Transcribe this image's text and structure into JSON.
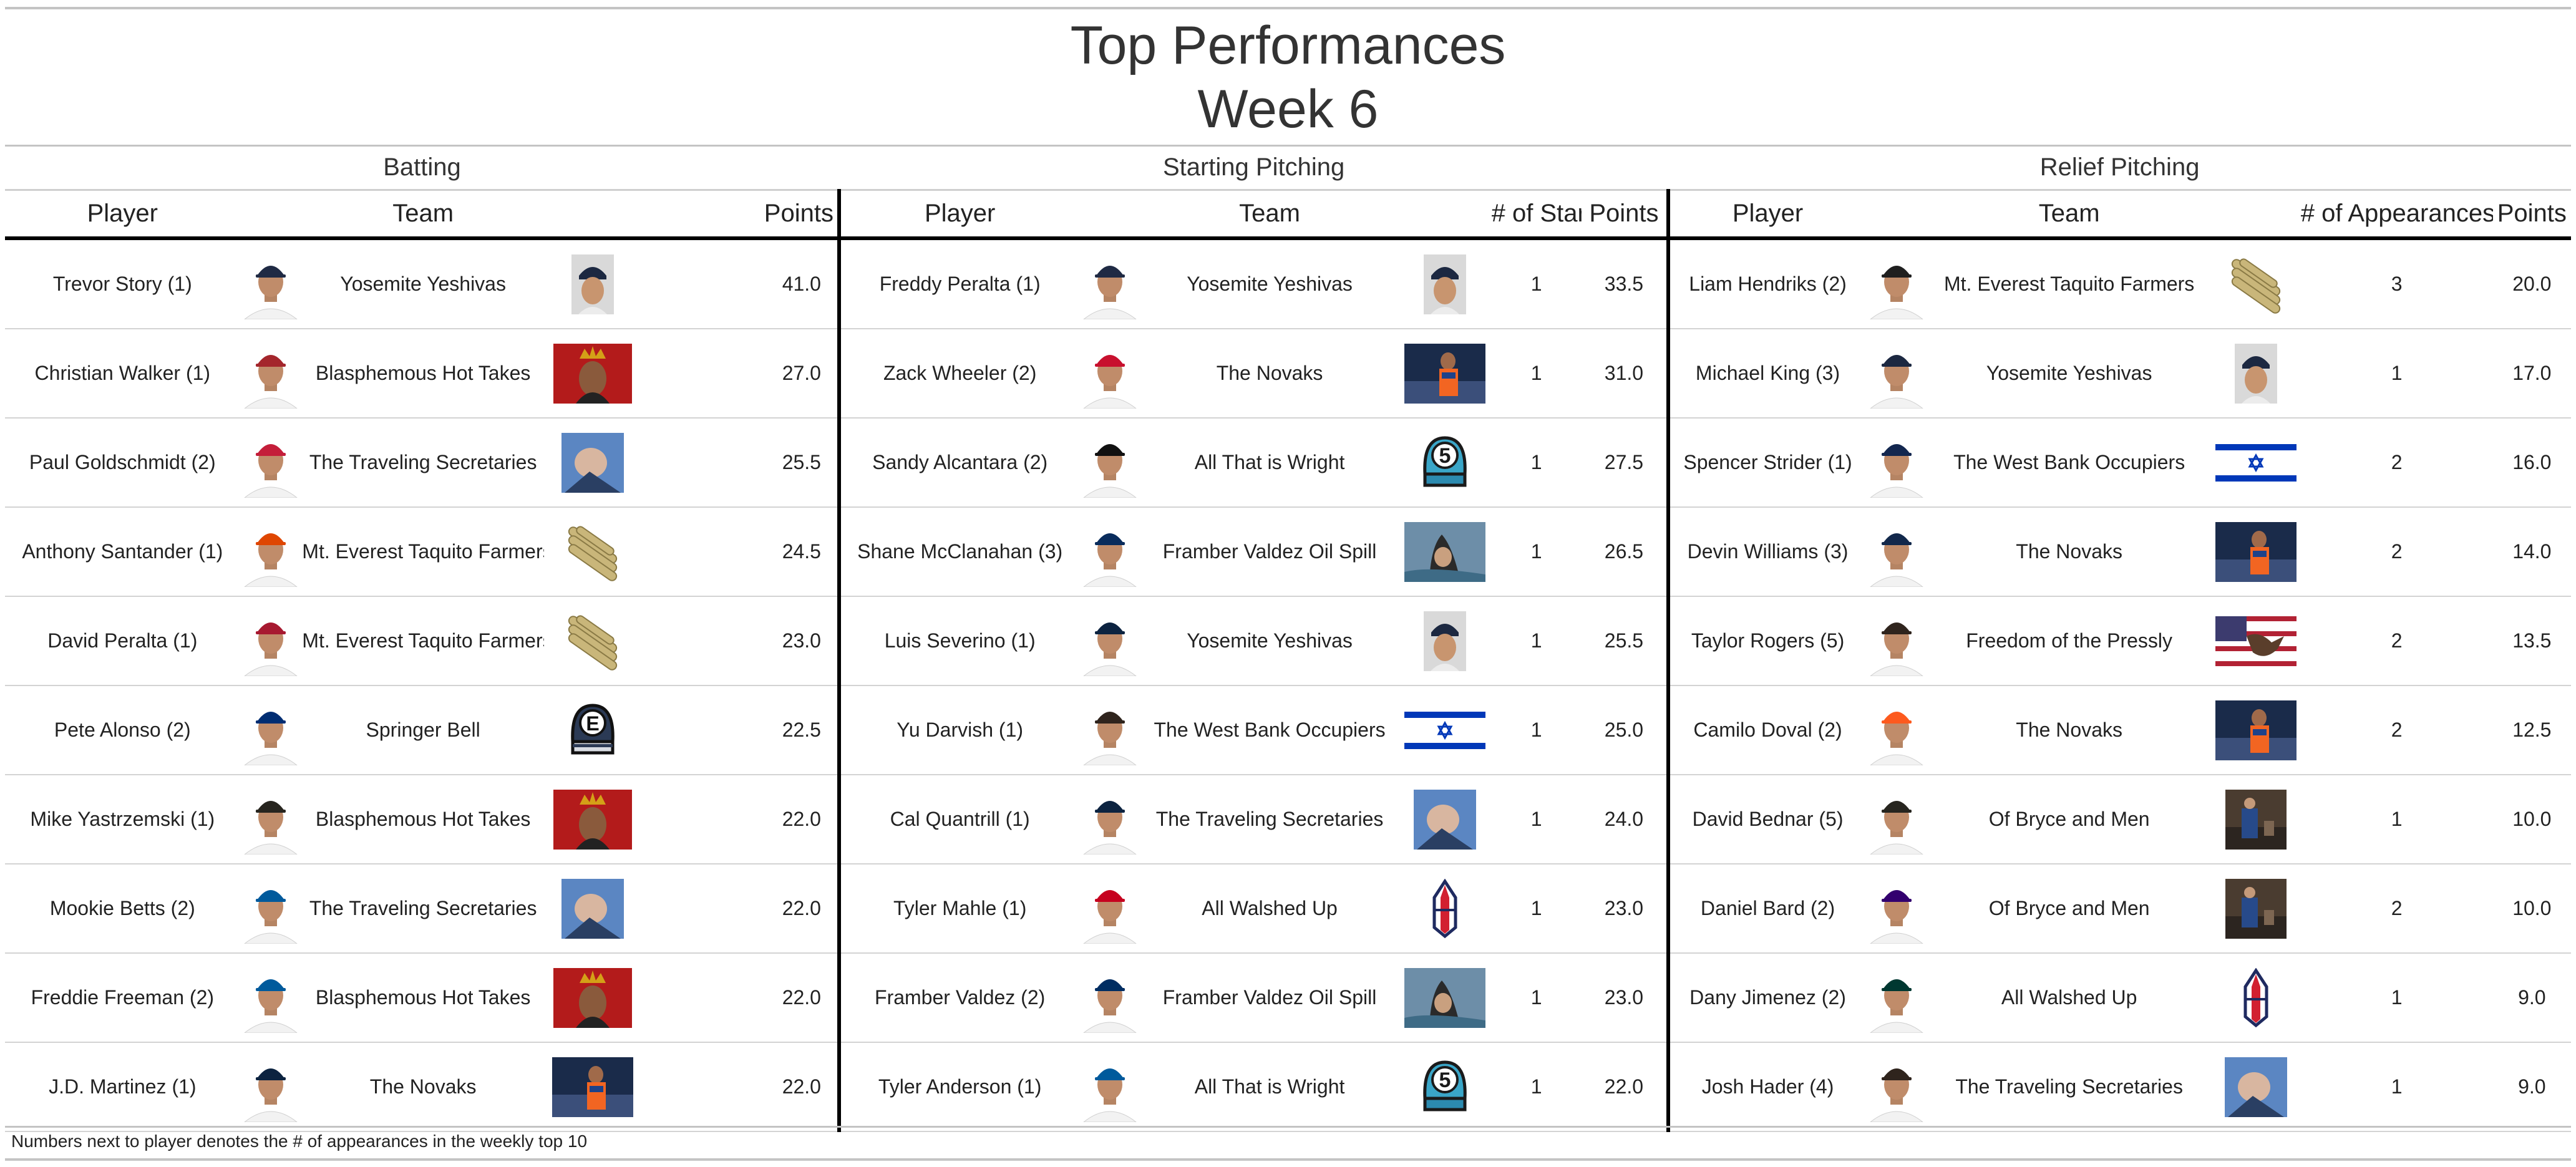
{
  "header": {
    "title": "Top Performances",
    "subtitle": "Week 6"
  },
  "sections": {
    "batting": "Batting",
    "starting": "Starting Pitching",
    "relief": "Relief Pitching"
  },
  "columns": {
    "player": "Player",
    "team": "Team",
    "points": "Points",
    "starts": "# of Starts",
    "appearances": "# of Appearances"
  },
  "rows": [
    {
      "bat": {
        "player": "Trevor Story (1)",
        "team": "Yosemite Yeshivas",
        "points": "41.0",
        "logo": "yosemite-yeshivas-logo",
        "cap": "#1f2a44"
      },
      "sp": {
        "player": "Freddy Peralta (1)",
        "team": "Yosemite Yeshivas",
        "starts": "1",
        "points": "33.5",
        "logo": "yosemite-yeshivas-logo",
        "cap": "#1f2a44"
      },
      "rp": {
        "player": "Liam Hendriks (2)",
        "team": "Mt. Everest Taquito Farmers",
        "apps": "3",
        "points": "20.0",
        "logo": "taquito-farmers-logo",
        "cap": "#1f1f1f"
      }
    },
    {
      "bat": {
        "player": "Christian Walker (1)",
        "team": "Blasphemous Hot Takes",
        "points": "27.0",
        "logo": "hot-takes-logo",
        "cap": "#a4262c"
      },
      "sp": {
        "player": "Zack Wheeler (2)",
        "team": "The Novaks",
        "starts": "1",
        "points": "31.0",
        "logo": "novaks-logo",
        "cap": "#c8102e"
      },
      "rp": {
        "player": "Michael King (3)",
        "team": "Yosemite Yeshivas",
        "apps": "1",
        "points": "17.0",
        "logo": "yosemite-yeshivas-logo",
        "cap": "#1c2841"
      }
    },
    {
      "bat": {
        "player": "Paul Goldschmidt (2)",
        "team": "The Traveling Secretaries",
        "points": "25.5",
        "logo": "traveling-secretaries-logo",
        "cap": "#c41e3a"
      },
      "sp": {
        "player": "Sandy Alcantara (2)",
        "team": "All That is Wright",
        "starts": "1",
        "points": "27.5",
        "logo": "all-that-is-wright-logo",
        "cap": "#111111"
      },
      "rp": {
        "player": "Spencer Strider (1)",
        "team": "The West Bank Occupiers",
        "apps": "2",
        "points": "16.0",
        "logo": "west-bank-occupiers-logo",
        "cap": "#13274f"
      }
    },
    {
      "bat": {
        "player": "Anthony Santander (1)",
        "team": "Mt. Everest Taquito Farmers",
        "points": "24.5",
        "logo": "taquito-farmers-logo",
        "cap": "#df4601"
      },
      "sp": {
        "player": "Shane McClanahan (3)",
        "team": "Framber Valdez Oil Spill",
        "starts": "1",
        "points": "26.5",
        "logo": "oil-spill-logo",
        "cap": "#092c5c"
      },
      "rp": {
        "player": "Devin Williams (3)",
        "team": "The Novaks",
        "apps": "2",
        "points": "14.0",
        "logo": "novaks-logo",
        "cap": "#12284b"
      }
    },
    {
      "bat": {
        "player": "David Peralta (1)",
        "team": "Mt. Everest Taquito Farmers",
        "points": "23.0",
        "logo": "taquito-farmers-logo",
        "cap": "#a71930"
      },
      "sp": {
        "player": "Luis Severino (1)",
        "team": "Yosemite Yeshivas",
        "starts": "1",
        "points": "25.5",
        "logo": "yosemite-yeshivas-logo",
        "cap": "#0c2340"
      },
      "rp": {
        "player": "Taylor Rogers (5)",
        "team": "Freedom of the Pressly",
        "apps": "2",
        "points": "13.5",
        "logo": "freedom-pressly-logo",
        "cap": "#2f241d"
      }
    },
    {
      "bat": {
        "player": "Pete Alonso (2)",
        "team": "Springer Bell",
        "points": "22.5",
        "logo": "springer-bell-logo",
        "cap": "#002d72"
      },
      "sp": {
        "player": "Yu Darvish (1)",
        "team": "The West Bank Occupiers",
        "starts": "1",
        "points": "25.0",
        "logo": "west-bank-occupiers-logo",
        "cap": "#2f241d"
      },
      "rp": {
        "player": "Camilo Doval (2)",
        "team": "The Novaks",
        "apps": "2",
        "points": "12.5",
        "logo": "novaks-logo",
        "cap": "#fd5a1e"
      }
    },
    {
      "bat": {
        "player": "Mike Yastrzemski (1)",
        "team": "Blasphemous Hot Takes",
        "points": "22.0",
        "logo": "hot-takes-logo",
        "cap": "#27251f"
      },
      "sp": {
        "player": "Cal Quantrill (1)",
        "team": "The Traveling Secretaries",
        "starts": "1",
        "points": "24.0",
        "logo": "traveling-secretaries-logo",
        "cap": "#0c2340"
      },
      "rp": {
        "player": "David Bednar (5)",
        "team": "Of Bryce and Men",
        "apps": "1",
        "points": "10.0",
        "logo": "bryce-and-men-logo",
        "cap": "#27251f"
      }
    },
    {
      "bat": {
        "player": "Mookie Betts (2)",
        "team": "The Traveling Secretaries",
        "points": "22.0",
        "logo": "traveling-secretaries-logo",
        "cap": "#005a9c"
      },
      "sp": {
        "player": "Tyler Mahle (1)",
        "team": "All Walshed Up",
        "starts": "1",
        "points": "23.0",
        "logo": "all-walshed-up-logo",
        "cap": "#c6011f"
      },
      "rp": {
        "player": "Daniel Bard (2)",
        "team": "Of Bryce and Men",
        "apps": "2",
        "points": "10.0",
        "logo": "bryce-and-men-logo",
        "cap": "#33006f"
      }
    },
    {
      "bat": {
        "player": "Freddie Freeman (2)",
        "team": "Blasphemous Hot Takes",
        "points": "22.0",
        "logo": "hot-takes-logo",
        "cap": "#005a9c"
      },
      "sp": {
        "player": "Framber Valdez (2)",
        "team": "Framber Valdez Oil Spill",
        "starts": "1",
        "points": "23.0",
        "logo": "oil-spill-logo",
        "cap": "#002d62"
      },
      "rp": {
        "player": "Dany Jimenez (2)",
        "team": "All Walshed Up",
        "apps": "1",
        "points": "9.0",
        "logo": "all-walshed-up-logo",
        "cap": "#003831"
      }
    },
    {
      "bat": {
        "player": "J.D. Martinez (1)",
        "team": "The Novaks",
        "points": "22.0",
        "logo": "novaks-logo",
        "cap": "#0c2340"
      },
      "sp": {
        "player": "Tyler Anderson (1)",
        "team": "All That is Wright",
        "starts": "1",
        "points": "22.0",
        "logo": "all-that-is-wright-logo",
        "cap": "#005a9c"
      },
      "rp": {
        "player": "Josh Hader (4)",
        "team": "The Traveling Secretaries",
        "apps": "1",
        "points": "9.0",
        "logo": "traveling-secretaries-logo",
        "cap": "#2f241d"
      }
    }
  ],
  "footnote": "Numbers next to player denotes the # of appearances in the weekly top 10"
}
